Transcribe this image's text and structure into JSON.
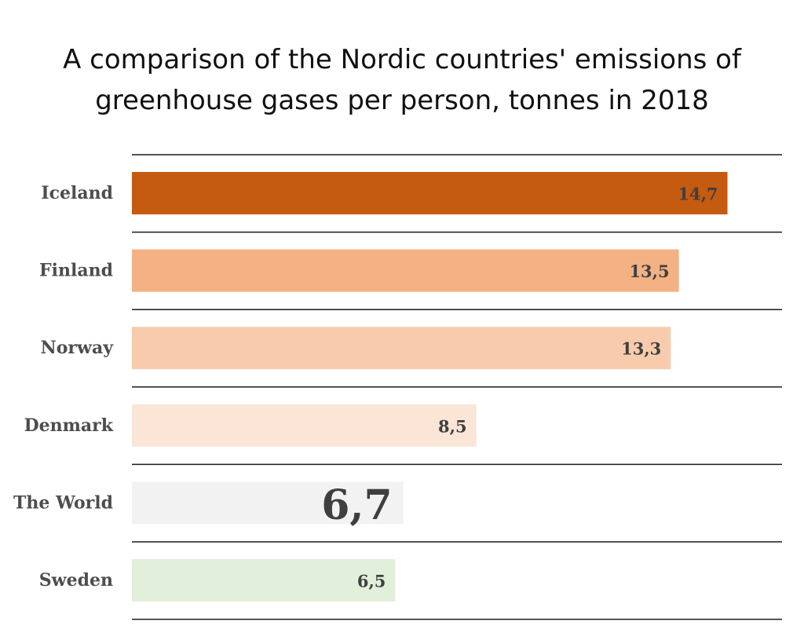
{
  "chart_data": {
    "type": "bar",
    "orientation": "horizontal",
    "title": "A comparison of the Nordic countries' emissions of greenhouse gases per person, tonnes in 2018",
    "categories": [
      "Iceland",
      "Finland",
      "Norway",
      "Denmark",
      "The World",
      "Sweden"
    ],
    "values": [
      14.7,
      13.5,
      13.3,
      8.5,
      6.7,
      6.5
    ],
    "value_labels": [
      "14,7",
      "13,5",
      "13,3",
      "8,5",
      "6,7",
      "6,5"
    ],
    "bar_colors": [
      "#c55a11",
      "#f4b183",
      "#f8cbad",
      "#fbe5d6",
      "#f2f2f2",
      "#e2efda"
    ],
    "highlight_category": "The World",
    "xlim": [
      0,
      15
    ],
    "xlabel": "",
    "ylabel": "",
    "grid": "horizontal separator lines between rows",
    "legend": "none"
  }
}
